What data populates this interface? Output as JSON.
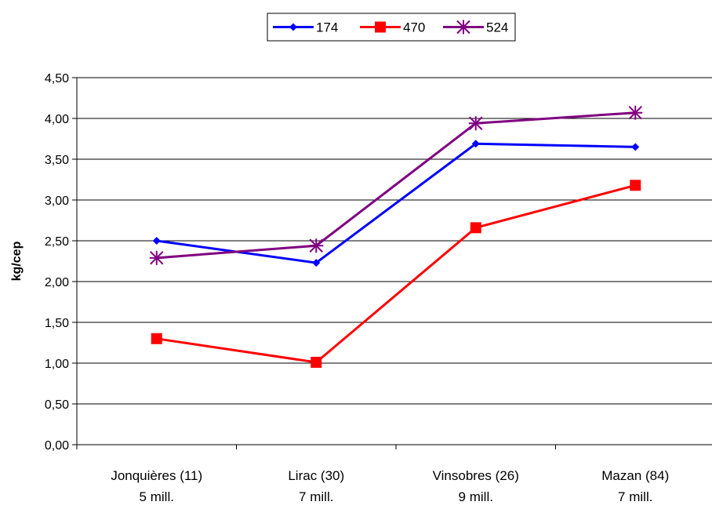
{
  "chart_data": {
    "type": "line",
    "title": "",
    "xlabel": "",
    "ylabel": "kg/cep",
    "categories": [
      [
        "Jonquières (11)",
        "5 mill."
      ],
      [
        "Lirac (30)",
        "7 mill."
      ],
      [
        "Vinsobres (26)",
        "9 mill."
      ],
      [
        "Mazan (84)",
        "7 mill."
      ]
    ],
    "y_ticks": [
      "0,00",
      "0,50",
      "1,00",
      "1,50",
      "2,00",
      "2,50",
      "3,00",
      "3,50",
      "4,00",
      "4,50"
    ],
    "ylim": [
      0,
      4.5
    ],
    "grid": true,
    "legend_position": "top-center",
    "series": [
      {
        "name": "174",
        "color": "#0000FF",
        "marker": "diamond",
        "values": [
          2.5,
          2.23,
          3.69,
          3.65
        ]
      },
      {
        "name": "470",
        "color": "#FF0000",
        "marker": "square",
        "values": [
          1.3,
          1.01,
          2.66,
          3.18
        ]
      },
      {
        "name": "524",
        "color": "#800080",
        "marker": "star",
        "values": [
          2.29,
          2.44,
          3.94,
          4.07
        ]
      }
    ]
  }
}
